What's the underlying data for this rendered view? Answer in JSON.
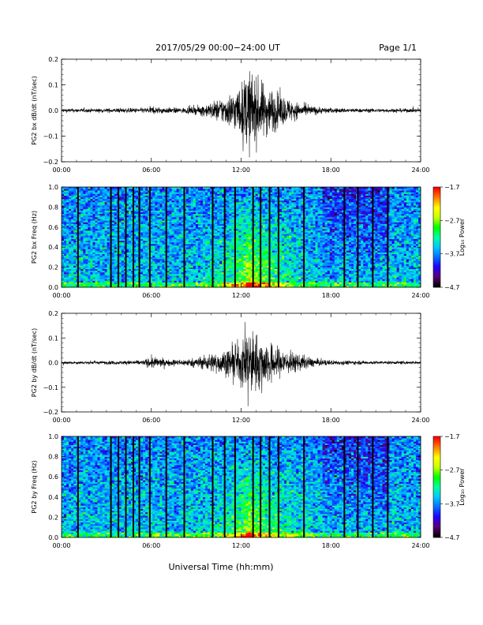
{
  "header": {
    "title": "2017/05/29  00:00−24:00 UT",
    "page": "Page 1/1"
  },
  "footer": {
    "xlabel": "Universal Time (hh:mm)"
  },
  "colors": {
    "trace": "#000000",
    "colormap": [
      "#000000",
      "#5a0078",
      "#2000ff",
      "#0070ff",
      "#00c8ff",
      "#00ffa0",
      "#00ff00",
      "#c8ff00",
      "#ffff00",
      "#ff8000",
      "#ff0000"
    ]
  },
  "chart_data": [
    {
      "type": "line",
      "ylabel": "PG2 bx dB/dt (nT/sec)",
      "xlim": [
        "00:00",
        "24:00"
      ],
      "ylim": [
        -0.2,
        0.2
      ],
      "xticks": [
        "00:00",
        "06:00",
        "12:00",
        "18:00",
        "24:00"
      ],
      "yticks": [
        "-0.2",
        "-0.1",
        "0.0",
        "0.1",
        "0.2"
      ],
      "envelope": {
        "hours": [
          0,
          2,
          4,
          5.5,
          6,
          7,
          8,
          9,
          10,
          11,
          12,
          12.5,
          13,
          14,
          15,
          16,
          17,
          18,
          20,
          22,
          24
        ],
        "amplitude": [
          0.006,
          0.006,
          0.007,
          0.008,
          0.012,
          0.009,
          0.008,
          0.012,
          0.025,
          0.045,
          0.08,
          0.13,
          0.1,
          0.07,
          0.04,
          0.02,
          0.012,
          0.008,
          0.006,
          0.006,
          0.006
        ]
      }
    },
    {
      "type": "heatmap",
      "ylabel": "PG2 bx Freq (Hz)",
      "xlim": [
        "00:00",
        "24:00"
      ],
      "ylim": [
        0.0,
        1.0
      ],
      "xticks": [
        "00:00",
        "06:00",
        "12:00",
        "18:00",
        "24:00"
      ],
      "yticks": [
        "0.0",
        "0.2",
        "0.4",
        "0.6",
        "0.8",
        "1.0"
      ],
      "colorbar": {
        "label": "Log₁₀ Power",
        "ticks": [
          "-1.7",
          "-2.7",
          "-3.7",
          "-4.7"
        ],
        "range": [
          -4.7,
          -1.7
        ]
      },
      "data_gaps_hours": [
        1.1,
        3.3,
        3.8,
        4.3,
        4.8,
        5.2,
        5.9,
        7.0,
        8.2,
        10.1,
        10.9,
        11.6,
        12.8,
        13.3,
        13.9,
        14.5,
        16.2,
        18.9,
        19.8,
        20.8,
        21.8
      ]
    },
    {
      "type": "line",
      "ylabel": "PG2 by dB/dt (nT/sec)",
      "xlim": [
        "00:00",
        "24:00"
      ],
      "ylim": [
        -0.2,
        0.2
      ],
      "xticks": [
        "00:00",
        "06:00",
        "12:00",
        "18:00",
        "24:00"
      ],
      "yticks": [
        "-0.2",
        "-0.1",
        "0.0",
        "0.1",
        "0.2"
      ],
      "envelope": {
        "hours": [
          0,
          2,
          4,
          5.5,
          6,
          7,
          8,
          9,
          10,
          11,
          12,
          12.5,
          13,
          14,
          15,
          16,
          17,
          18,
          20,
          22,
          24
        ],
        "amplitude": [
          0.005,
          0.005,
          0.006,
          0.008,
          0.02,
          0.01,
          0.01,
          0.015,
          0.03,
          0.04,
          0.07,
          0.12,
          0.09,
          0.06,
          0.04,
          0.025,
          0.012,
          0.008,
          0.006,
          0.005,
          0.005
        ]
      }
    },
    {
      "type": "heatmap",
      "ylabel": "PG2 by Freq (Hz)",
      "xlim": [
        "00:00",
        "24:00"
      ],
      "ylim": [
        0.0,
        1.0
      ],
      "xticks": [
        "00:00",
        "06:00",
        "12:00",
        "18:00",
        "24:00"
      ],
      "yticks": [
        "0.0",
        "0.2",
        "0.4",
        "0.6",
        "0.8",
        "1.0"
      ],
      "colorbar": {
        "label": "Log₁₀ Power",
        "ticks": [
          "-1.7",
          "-2.7",
          "-3.7",
          "-4.7"
        ],
        "range": [
          -4.7,
          -1.7
        ]
      },
      "data_gaps_hours": [
        1.1,
        3.3,
        3.8,
        4.3,
        4.8,
        5.2,
        5.9,
        7.0,
        8.2,
        10.1,
        10.9,
        11.6,
        12.8,
        13.3,
        13.9,
        14.5,
        16.2,
        18.9,
        19.8,
        20.8,
        21.8
      ]
    }
  ]
}
